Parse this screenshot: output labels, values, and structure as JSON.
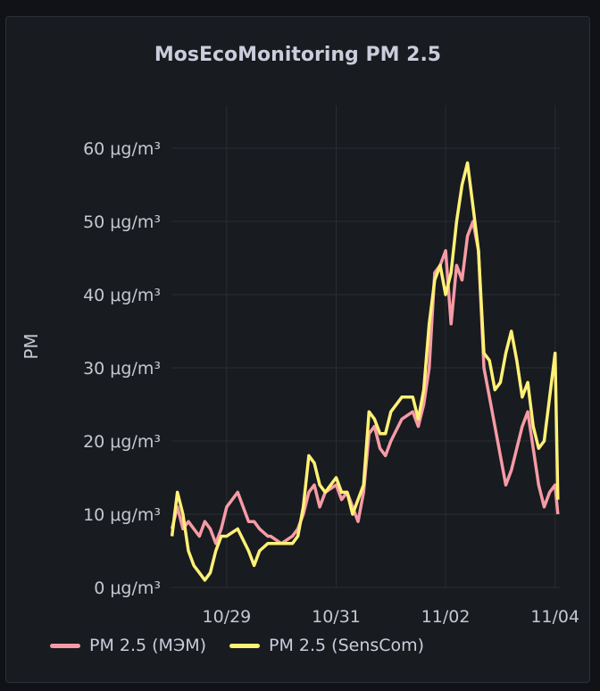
{
  "panel": {
    "title": "MosEcoMonitoring PM 2.5"
  },
  "colors": {
    "mem": "#f59ba6",
    "senscom": "#fff176",
    "grid": "#2a2d33"
  },
  "chart_data": {
    "type": "line",
    "title": "MosEcoMonitoring PM 2.5",
    "xlabel": "",
    "ylabel": "PM",
    "x_ticks": [
      "10/29",
      "10/31",
      "11/02",
      "11/04"
    ],
    "y_ticks": [
      "0 μg/m³",
      "10 μg/m³",
      "20 μg/m³",
      "30 μg/m³",
      "40 μg/m³",
      "50 μg/m³",
      "60 μg/m³"
    ],
    "ylim": [
      0,
      60
    ],
    "xlim": [
      "10/27 22:00",
      "11/04 00:00"
    ],
    "x_unit": "days",
    "x": [
      0,
      0.1,
      0.2,
      0.3,
      0.4,
      0.5,
      0.6,
      0.7,
      0.8,
      0.9,
      1,
      1.2,
      1.4,
      1.5,
      1.6,
      1.75,
      1.8,
      2,
      2.2,
      2.3,
      2.4,
      2.5,
      2.6,
      2.7,
      2.8,
      3,
      3.1,
      3.2,
      3.3,
      3.4,
      3.5,
      3.6,
      3.7,
      3.8,
      3.9,
      4,
      4.2,
      4.4,
      4.5,
      4.6,
      4.7,
      4.8,
      4.9,
      5,
      5.1,
      5.2,
      5.3,
      5.4,
      5.5,
      5.6,
      5.7,
      5.8,
      5.9,
      6,
      6.1,
      6.2,
      6.3,
      6.4,
      6.5,
      6.6,
      6.7,
      6.8,
      6.9,
      7,
      7.05
    ],
    "series": [
      {
        "name": "PM 2.5 (МЭМ)",
        "values": [
          8,
          11,
          8,
          9,
          8,
          7,
          9,
          8,
          6,
          8,
          11,
          13,
          9,
          9,
          8,
          7,
          7,
          6,
          7,
          8,
          10,
          13,
          14,
          11,
          13,
          14,
          12,
          13,
          11,
          9,
          13,
          21,
          22,
          19,
          18,
          20,
          23,
          24,
          22,
          25,
          30,
          43,
          44,
          46,
          36,
          44,
          42,
          48,
          50,
          46,
          30,
          26,
          22,
          18,
          14,
          16,
          19,
          22,
          24,
          19,
          14,
          11,
          13,
          14,
          10
        ]
      },
      {
        "name": "PM 2.5 (SensCom)",
        "values": [
          7,
          13,
          10,
          5,
          3,
          2,
          1,
          2,
          5,
          7,
          7,
          8,
          5,
          3,
          5,
          6,
          6,
          6,
          6,
          7,
          11,
          18,
          17,
          14,
          13,
          15,
          13,
          13,
          10,
          12,
          14,
          24,
          23,
          21,
          21,
          24,
          26,
          26,
          23,
          27,
          36,
          42,
          44,
          40,
          43,
          50,
          55,
          58,
          52,
          46,
          32,
          31,
          27,
          28,
          32,
          35,
          31,
          26,
          28,
          22,
          19,
          20,
          26,
          32,
          12
        ]
      }
    ],
    "legend": "bottom-left",
    "grid": true
  }
}
